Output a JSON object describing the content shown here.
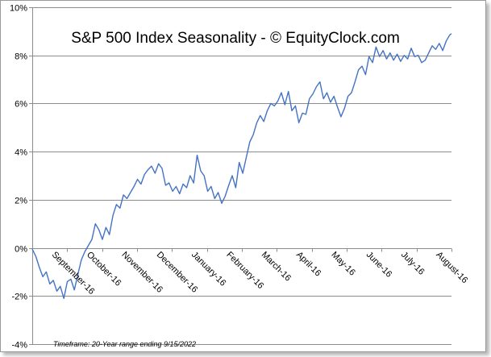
{
  "chart_data": {
    "type": "line",
    "title": "S&P 500 Index Seasonality - © EquityClock.com",
    "xlabel": "",
    "ylabel": "",
    "ylim": [
      -4,
      10
    ],
    "y_ticks": [
      -4,
      -2,
      0,
      2,
      4,
      6,
      8,
      10
    ],
    "y_tick_labels": [
      "-4%",
      "-2%",
      "0%",
      "2%",
      "4%",
      "6%",
      "8%",
      "10%"
    ],
    "categories": [
      "September-16",
      "October-16",
      "November-16",
      "December-16",
      "January-16",
      "February-16",
      "March-16",
      "April-16",
      "May-16",
      "June-16",
      "July-16",
      "August-16"
    ],
    "x_range": [
      0,
      11.95
    ],
    "grid": "horizontal",
    "legend": "none",
    "footnote": "Timeframe: 20-Year range ending 9/15/2022",
    "colors": {
      "series": "#4472c4",
      "grid": "#8c8c8c",
      "axis": "#8c8c8c"
    },
    "series": [
      {
        "name": "S&P 500 Index Seasonality",
        "x": [
          0.0,
          0.1,
          0.2,
          0.3,
          0.4,
          0.5,
          0.6,
          0.7,
          0.8,
          0.9,
          1.0,
          1.1,
          1.2,
          1.3,
          1.4,
          1.5,
          1.6,
          1.7,
          1.8,
          1.9,
          2.0,
          2.1,
          2.2,
          2.3,
          2.4,
          2.5,
          2.6,
          2.7,
          2.8,
          2.9,
          3.0,
          3.1,
          3.2,
          3.3,
          3.4,
          3.5,
          3.6,
          3.7,
          3.8,
          3.9,
          4.0,
          4.1,
          4.2,
          4.3,
          4.4,
          4.5,
          4.6,
          4.7,
          4.8,
          4.9,
          5.0,
          5.1,
          5.2,
          5.3,
          5.4,
          5.5,
          5.6,
          5.7,
          5.8,
          5.9,
          6.0,
          6.1,
          6.2,
          6.3,
          6.4,
          6.5,
          6.6,
          6.7,
          6.8,
          6.9,
          7.0,
          7.1,
          7.2,
          7.3,
          7.4,
          7.5,
          7.6,
          7.7,
          7.8,
          7.9,
          8.0,
          8.1,
          8.2,
          8.3,
          8.4,
          8.5,
          8.6,
          8.7,
          8.8,
          8.9,
          9.0,
          9.1,
          9.2,
          9.3,
          9.4,
          9.5,
          9.6,
          9.7,
          9.8,
          9.9,
          10.0,
          10.1,
          10.2,
          10.3,
          10.4,
          10.5,
          10.6,
          10.7,
          10.8,
          10.9,
          11.0,
          11.1,
          11.2,
          11.3,
          11.4,
          11.5,
          11.6,
          11.7,
          11.8,
          11.9,
          11.95
        ],
        "values": [
          -0.05,
          -0.35,
          -0.8,
          -1.2,
          -1.0,
          -1.5,
          -1.35,
          -1.8,
          -1.6,
          -2.1,
          -1.4,
          -1.3,
          -1.75,
          -1.1,
          -0.5,
          -0.15,
          0.1,
          0.35,
          1.0,
          0.75,
          0.35,
          0.85,
          0.55,
          1.35,
          1.8,
          1.65,
          2.2,
          2.05,
          2.3,
          2.55,
          2.85,
          2.65,
          3.05,
          3.25,
          3.4,
          3.1,
          3.5,
          3.3,
          2.6,
          2.7,
          2.35,
          2.55,
          2.25,
          2.65,
          2.5,
          3.0,
          2.7,
          3.85,
          3.2,
          3.0,
          2.35,
          2.55,
          2.05,
          2.3,
          1.85,
          2.15,
          2.6,
          3.0,
          2.5,
          3.55,
          3.1,
          3.75,
          4.4,
          4.7,
          5.2,
          5.5,
          5.25,
          5.7,
          6.0,
          5.9,
          6.1,
          6.45,
          5.95,
          6.5,
          5.7,
          5.9,
          5.2,
          5.6,
          5.55,
          6.2,
          6.4,
          6.7,
          6.9,
          6.2,
          6.45,
          6.05,
          6.3,
          5.85,
          5.45,
          5.8,
          6.3,
          6.45,
          6.9,
          7.4,
          7.55,
          7.2,
          7.95,
          7.7,
          8.35,
          7.95,
          8.2,
          7.85,
          8.1,
          7.8,
          8.05,
          7.75,
          8.0,
          7.85,
          8.3,
          7.95,
          8.0,
          7.7,
          7.8,
          8.1,
          8.4,
          8.25,
          8.5,
          8.2,
          8.6,
          8.85,
          8.9
        ]
      }
    ]
  }
}
